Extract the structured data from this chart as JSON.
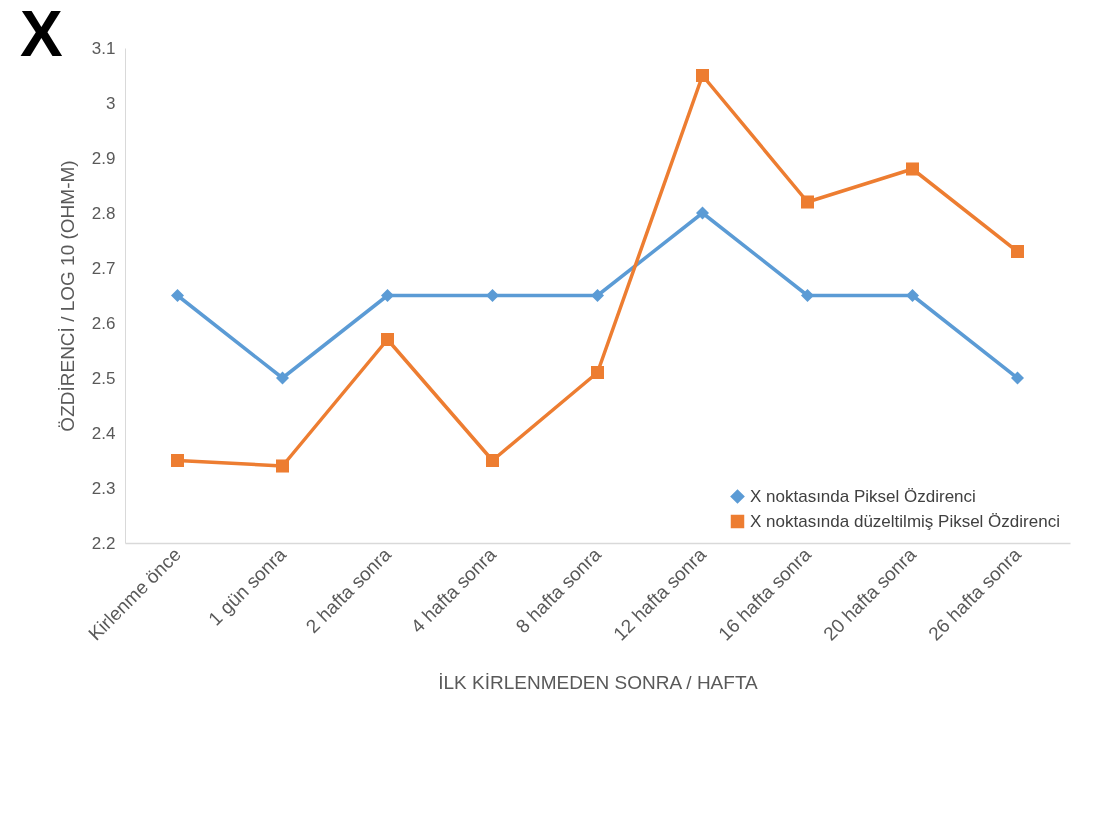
{
  "chart_data": {
    "type": "line",
    "title": "X",
    "xlabel": "İLK KİRLENMEDEN SONRA / HAFTA",
    "ylabel": "ÖZDİRENCİ / LOG 10 (OHM-M)",
    "categories": [
      "Kirlenme önce",
      "1 gün sonra",
      "2 hafta sonra",
      "4 hafta sonra",
      "8 hafta sonra",
      "12 hafta sonra",
      "16 hafta sonra",
      "20 hafta sonra",
      "26 hafta sonra"
    ],
    "series": [
      {
        "name": "X noktasında Piksel Özdirenci",
        "color": "#5b9bd5",
        "marker": "diamond",
        "values": [
          2.65,
          2.5,
          2.65,
          2.65,
          2.65,
          2.8,
          2.65,
          2.65,
          2.5
        ]
      },
      {
        "name": "X noktasında düzeltilmiş Piksel Özdirenci",
        "color": "#ed7d31",
        "marker": "square",
        "values": [
          2.35,
          2.34,
          2.57,
          2.35,
          2.51,
          3.05,
          2.82,
          2.88,
          2.73
        ]
      }
    ],
    "ylim": [
      2.2,
      3.1
    ],
    "yticks": [
      2.2,
      2.3,
      2.4,
      2.5,
      2.6,
      2.7,
      2.8,
      2.9,
      3,
      3.1
    ],
    "grid": false,
    "legend": "bottom right"
  }
}
